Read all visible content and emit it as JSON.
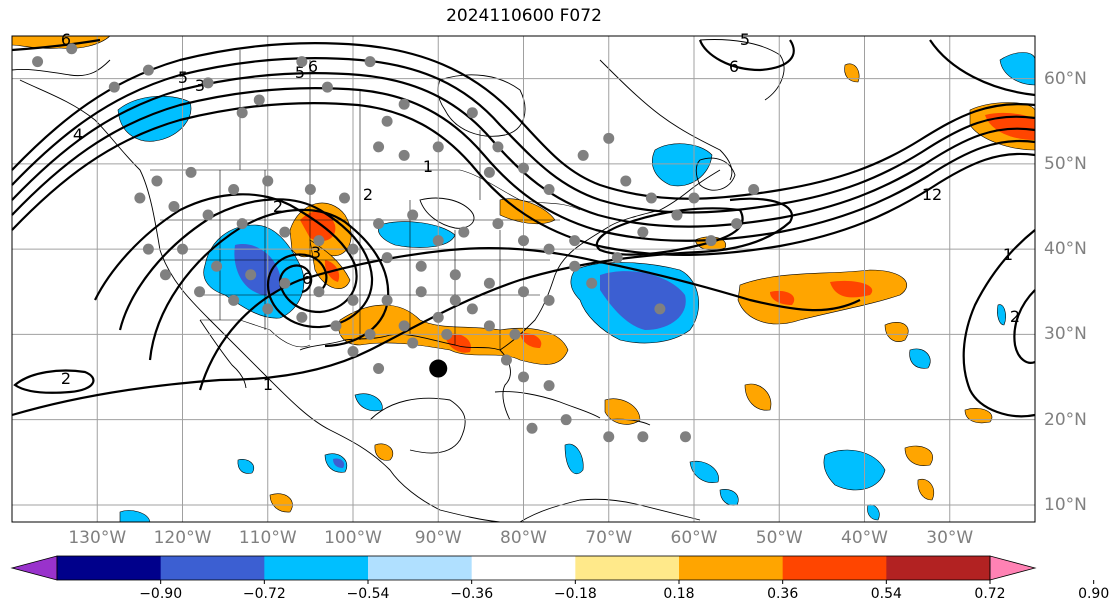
{
  "title": "2024110600 F072",
  "lon_labels": [
    {
      "text": "130°W",
      "lon": -130
    },
    {
      "text": "120°W",
      "lon": -120
    },
    {
      "text": "110°W",
      "lon": -110
    },
    {
      "text": "100°W",
      "lon": -100
    },
    {
      "text": "90°W",
      "lon": -90
    },
    {
      "text": "80°W",
      "lon": -80
    },
    {
      "text": "70°W",
      "lon": -70
    },
    {
      "text": "60°W",
      "lon": -60
    },
    {
      "text": "50°W",
      "lon": -50
    },
    {
      "text": "40°W",
      "lon": -40
    },
    {
      "text": "30°W",
      "lon": -30
    }
  ],
  "lat_labels": [
    {
      "text": "60°N",
      "lat": 60
    },
    {
      "text": "50°N",
      "lat": 50
    },
    {
      "text": "40°N",
      "lat": 40
    },
    {
      "text": "30°N",
      "lat": 30
    },
    {
      "text": "20°N",
      "lat": 20
    },
    {
      "text": "10°N",
      "lat": 10
    }
  ],
  "map_extent": {
    "lon_min": -140,
    "lon_max": -20,
    "lat_min": 8,
    "lat_max": 65
  },
  "colorbar": {
    "ticks": [
      "−0.90",
      "−0.72",
      "−0.54",
      "−0.36",
      "−0.18",
      "0.18",
      "0.36",
      "0.54",
      "0.72",
      "0.90"
    ],
    "colors": [
      "#9932cc",
      "#00008b",
      "#3c5fd2",
      "#00bfff",
      "#b0e0ff",
      "#ffffff",
      "#ffe98a",
      "#ffa500",
      "#ff4500",
      "#b22222",
      "#ff82b4"
    ]
  },
  "contour_labels": [
    "6",
    "5",
    "3",
    "6",
    "5",
    "1",
    "2",
    "6",
    "3",
    "2",
    "2",
    "1",
    "2",
    "12",
    "1",
    "6",
    "5",
    "4"
  ],
  "station_dots": [
    [
      -137,
      62
    ],
    [
      -133,
      63.5
    ],
    [
      -128,
      59
    ],
    [
      -124,
      61
    ],
    [
      -117,
      59.5
    ],
    [
      -113,
      56
    ],
    [
      -111,
      57.5
    ],
    [
      -106,
      62
    ],
    [
      -103,
      59
    ],
    [
      -98,
      62
    ],
    [
      -96,
      55
    ],
    [
      -94,
      57
    ],
    [
      -90,
      52
    ],
    [
      -86,
      56
    ],
    [
      -83,
      52
    ],
    [
      -97,
      52
    ],
    [
      -94,
      51
    ],
    [
      -84,
      49
    ],
    [
      -80,
      49.5
    ],
    [
      -77,
      47
    ],
    [
      -73,
      51
    ],
    [
      -70,
      53
    ],
    [
      -68,
      48
    ],
    [
      -65,
      46
    ],
    [
      -62,
      44
    ],
    [
      -60,
      46
    ],
    [
      -58,
      41
    ],
    [
      -55,
      43
    ],
    [
      -53,
      47
    ],
    [
      -66,
      42
    ],
    [
      -69,
      39
    ],
    [
      -74,
      41
    ],
    [
      -77,
      40
    ],
    [
      -80,
      41
    ],
    [
      -83,
      43
    ],
    [
      -87,
      42
    ],
    [
      -90,
      41
    ],
    [
      -93,
      44
    ],
    [
      -97,
      43
    ],
    [
      -101,
      46
    ],
    [
      -105,
      47
    ],
    [
      -110,
      48
    ],
    [
      -114,
      47
    ],
    [
      -119,
      49
    ],
    [
      -123,
      48
    ],
    [
      -125,
      46
    ],
    [
      -121,
      45
    ],
    [
      -117,
      44
    ],
    [
      -113,
      43
    ],
    [
      -108,
      42
    ],
    [
      -104,
      41
    ],
    [
      -100,
      40
    ],
    [
      -96,
      39
    ],
    [
      -92,
      38
    ],
    [
      -88,
      37
    ],
    [
      -84,
      36
    ],
    [
      -80,
      35
    ],
    [
      -77,
      34
    ],
    [
      -74,
      38
    ],
    [
      -72,
      36
    ],
    [
      -86,
      33
    ],
    [
      -90,
      32
    ],
    [
      -94,
      31
    ],
    [
      -98,
      30
    ],
    [
      -102,
      31
    ],
    [
      -106,
      32
    ],
    [
      -110,
      33
    ],
    [
      -114,
      34
    ],
    [
      -118,
      35
    ],
    [
      -122,
      37
    ],
    [
      -124,
      40
    ],
    [
      -120,
      40
    ],
    [
      -116,
      38
    ],
    [
      -112,
      37
    ],
    [
      -108,
      36
    ],
    [
      -104,
      35
    ],
    [
      -100,
      34
    ],
    [
      -96,
      34
    ],
    [
      -92,
      35
    ],
    [
      -88,
      34
    ],
    [
      -84,
      31
    ],
    [
      -81,
      30
    ],
    [
      -82,
      27
    ],
    [
      -80,
      25
    ],
    [
      -77,
      24
    ],
    [
      -75,
      20
    ],
    [
      -66,
      18
    ],
    [
      -70,
      18
    ],
    [
      -61,
      18
    ],
    [
      -64,
      33
    ],
    [
      -97,
      26
    ],
    [
      -93,
      29
    ],
    [
      -89,
      30
    ],
    [
      -100,
      28
    ],
    [
      -79,
      19
    ]
  ],
  "big_marker": {
    "lon": -90,
    "lat": 26
  }
}
